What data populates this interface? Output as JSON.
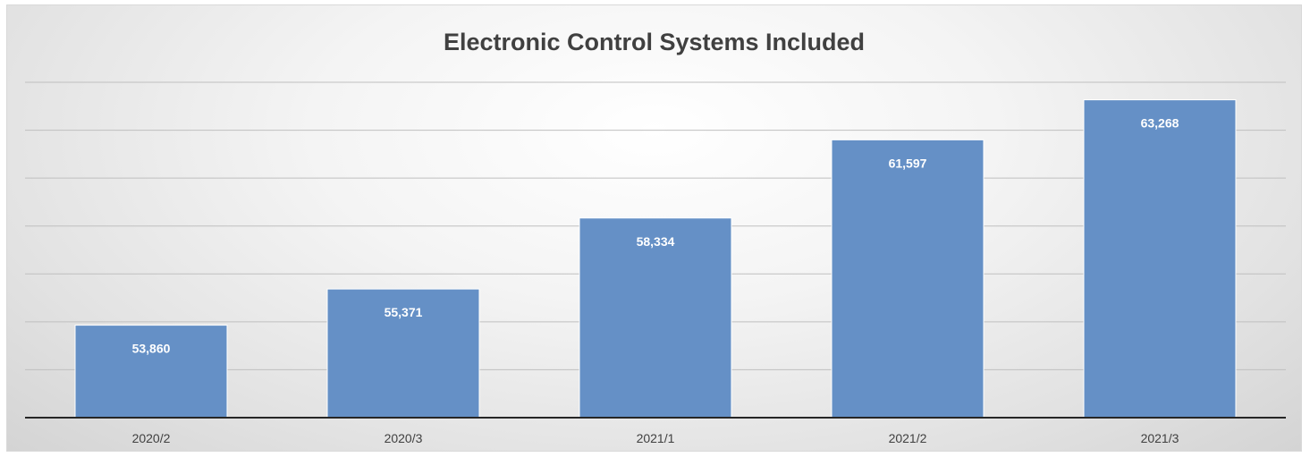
{
  "chart_data": {
    "type": "bar",
    "title": "Electronic Control Systems Included",
    "xlabel": "",
    "ylabel": "",
    "categories": [
      "2020/2",
      "2020/3",
      "2021/1",
      "2021/2",
      "2021/3"
    ],
    "values": [
      53860,
      55371,
      58334,
      61597,
      63268
    ],
    "value_labels": [
      "53,860",
      "55,371",
      "58,334",
      "61,597",
      "63,268"
    ],
    "ylim": [
      50000,
      64000
    ],
    "grid": true,
    "legend": "none",
    "bar_color": "#6590c6",
    "bar_edge_color": "#ffffff",
    "axis_color": "#262626",
    "grid_color": "#bfbfbf"
  }
}
